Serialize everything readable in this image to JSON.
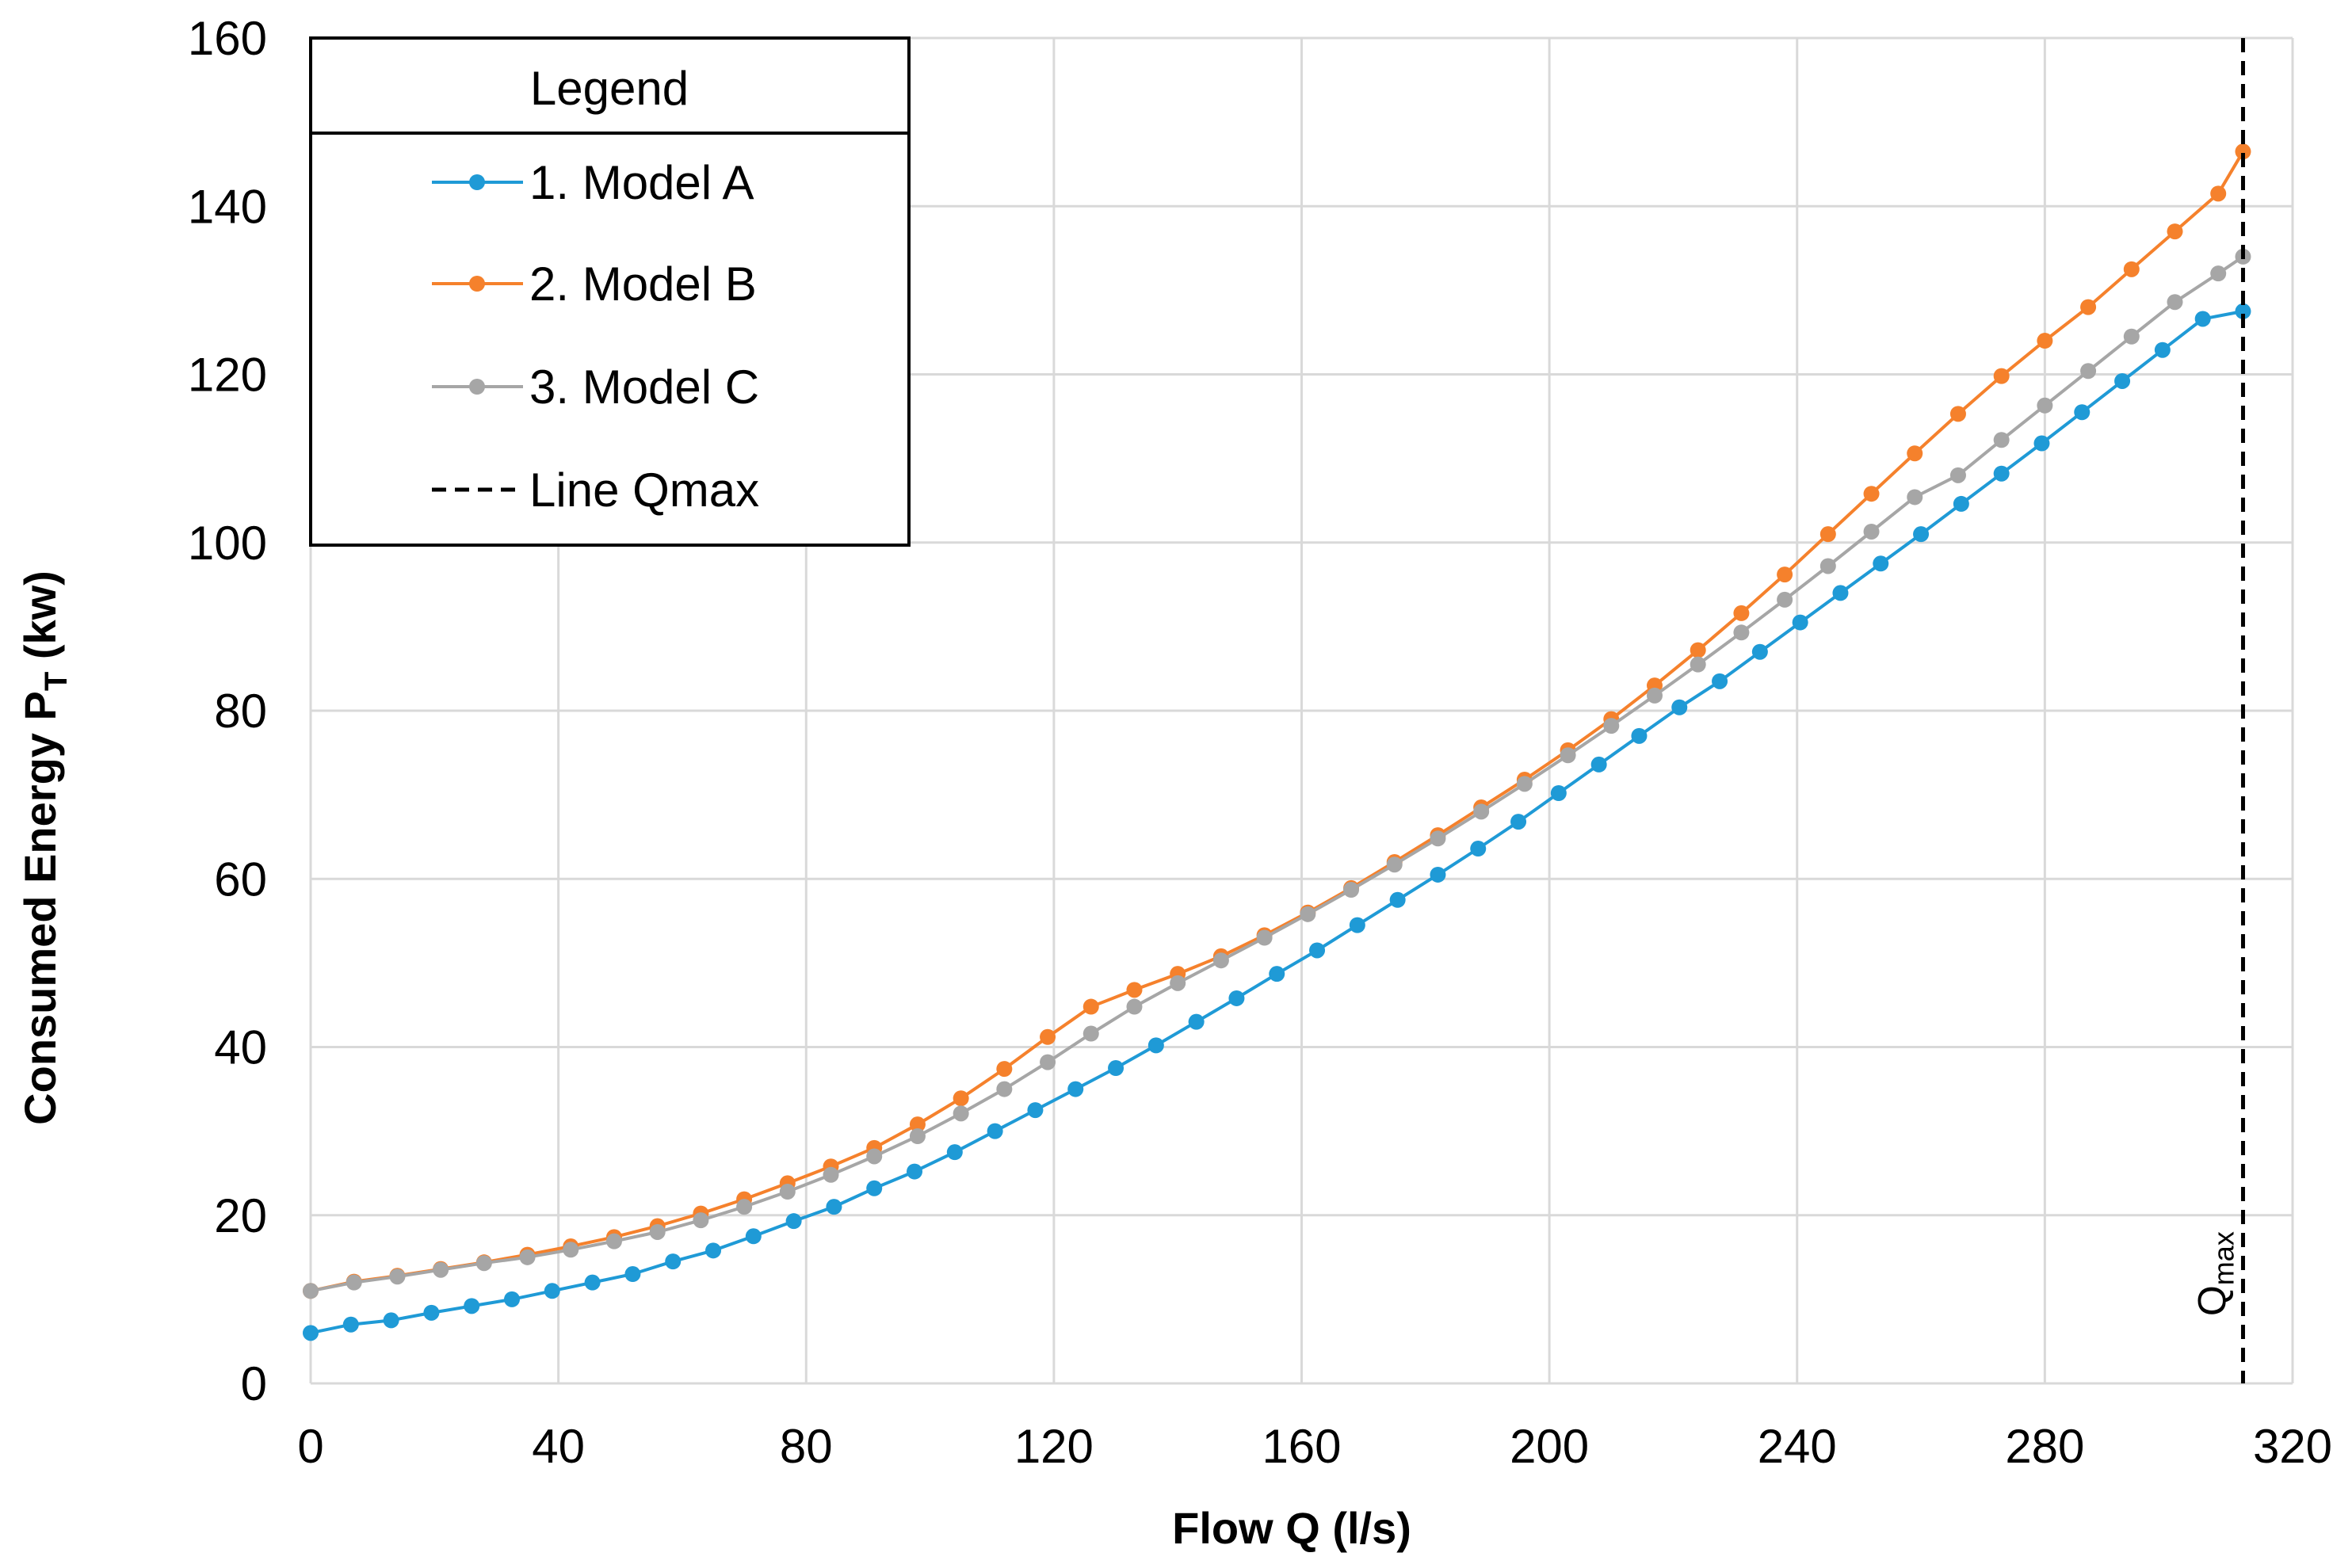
{
  "chart_data": {
    "type": "line",
    "title": "",
    "xlabel": "Flow Q (l/s)",
    "ylabel_main": "Consumed Energy P",
    "ylabel_sub": "T",
    "ylabel_unit": "(kw)",
    "xlim": [
      0,
      320
    ],
    "ylim": [
      0,
      160
    ],
    "xticks": [
      0,
      40,
      80,
      120,
      160,
      200,
      240,
      280,
      320
    ],
    "yticks": [
      0,
      20,
      40,
      60,
      80,
      100,
      120,
      140,
      160
    ],
    "grid": true,
    "legend": {
      "title": "Legend",
      "placement": "top-left",
      "entries": [
        "1. Model A",
        "2. Model B",
        "3. Model C",
        "Line Qmax"
      ]
    },
    "series": [
      {
        "name": "1. Model A",
        "color": "#1f9ad6",
        "points": [
          [
            0,
            6.0
          ],
          [
            6.5,
            7.0
          ],
          [
            13,
            7.5
          ],
          [
            19.5,
            8.4
          ],
          [
            26,
            9.2
          ],
          [
            32.5,
            10.0
          ],
          [
            39,
            11.0
          ],
          [
            45.5,
            12.0
          ],
          [
            52,
            13.0
          ],
          [
            58.5,
            14.5
          ],
          [
            65,
            15.8
          ],
          [
            71.5,
            17.5
          ],
          [
            78,
            19.3
          ],
          [
            84.5,
            21.0
          ],
          [
            91,
            23.2
          ],
          [
            97.5,
            25.2
          ],
          [
            104,
            27.5
          ],
          [
            110.5,
            30.0
          ],
          [
            117,
            32.5
          ],
          [
            123.5,
            35.0
          ],
          [
            130,
            37.5
          ],
          [
            136.5,
            40.2
          ],
          [
            143,
            43.0
          ],
          [
            149.5,
            45.8
          ],
          [
            156,
            48.7
          ],
          [
            162.5,
            51.5
          ],
          [
            169,
            54.5
          ],
          [
            175.5,
            57.5
          ],
          [
            182,
            60.5
          ],
          [
            188.5,
            63.6
          ],
          [
            195,
            66.8
          ],
          [
            201.5,
            70.2
          ],
          [
            208,
            73.6
          ],
          [
            214.5,
            77.0
          ],
          [
            221,
            80.4
          ],
          [
            227.5,
            83.5
          ],
          [
            234,
            87.0
          ],
          [
            240.5,
            90.5
          ],
          [
            247,
            94.0
          ],
          [
            253.5,
            97.5
          ],
          [
            260,
            101.0
          ],
          [
            266.5,
            104.6
          ],
          [
            273,
            108.2
          ],
          [
            279.5,
            111.8
          ],
          [
            286,
            115.5
          ],
          [
            292.5,
            119.2
          ],
          [
            299,
            122.9
          ],
          [
            305.5,
            126.6
          ],
          [
            312,
            127.5
          ]
        ]
      },
      {
        "name": "2. Model B",
        "color": "#f5812c",
        "points": [
          [
            0,
            11.0
          ],
          [
            7,
            12.1
          ],
          [
            14,
            12.8
          ],
          [
            21,
            13.6
          ],
          [
            28,
            14.4
          ],
          [
            35,
            15.3
          ],
          [
            42,
            16.3
          ],
          [
            49,
            17.4
          ],
          [
            56,
            18.7
          ],
          [
            63,
            20.2
          ],
          [
            70,
            21.9
          ],
          [
            77,
            23.8
          ],
          [
            84,
            25.8
          ],
          [
            91,
            28.0
          ],
          [
            98,
            30.8
          ],
          [
            105,
            33.9
          ],
          [
            112,
            37.4
          ],
          [
            119,
            41.2
          ],
          [
            126,
            44.8
          ],
          [
            133,
            46.8
          ],
          [
            140,
            48.7
          ],
          [
            147,
            50.8
          ],
          [
            154,
            53.3
          ],
          [
            161,
            56.0
          ],
          [
            168,
            58.9
          ],
          [
            175,
            62.0
          ],
          [
            182,
            65.2
          ],
          [
            189,
            68.5
          ],
          [
            196,
            71.8
          ],
          [
            203,
            75.3
          ],
          [
            210,
            79.0
          ],
          [
            217,
            83.0
          ],
          [
            224,
            87.2
          ],
          [
            231,
            91.6
          ],
          [
            238,
            96.2
          ],
          [
            245,
            101.0
          ],
          [
            252,
            105.8
          ],
          [
            259,
            110.6
          ],
          [
            266,
            115.3
          ],
          [
            273,
            119.8
          ],
          [
            280,
            124.0
          ],
          [
            287,
            128.0
          ],
          [
            294,
            132.5
          ],
          [
            301,
            137.0
          ],
          [
            308,
            141.5
          ],
          [
            312,
            146.5
          ]
        ]
      },
      {
        "name": "3. Model C",
        "color": "#a6a6a6",
        "points": [
          [
            0,
            11.0
          ],
          [
            7,
            12.0
          ],
          [
            14,
            12.7
          ],
          [
            21,
            13.5
          ],
          [
            28,
            14.3
          ],
          [
            35,
            15.0
          ],
          [
            42,
            15.9
          ],
          [
            49,
            16.9
          ],
          [
            56,
            18.0
          ],
          [
            63,
            19.4
          ],
          [
            70,
            21.0
          ],
          [
            77,
            22.8
          ],
          [
            84,
            24.8
          ],
          [
            91,
            27.0
          ],
          [
            98,
            29.4
          ],
          [
            105,
            32.1
          ],
          [
            112,
            35.0
          ],
          [
            119,
            38.2
          ],
          [
            126,
            41.6
          ],
          [
            133,
            44.8
          ],
          [
            140,
            47.6
          ],
          [
            147,
            50.3
          ],
          [
            154,
            53.0
          ],
          [
            161,
            55.8
          ],
          [
            168,
            58.7
          ],
          [
            175,
            61.7
          ],
          [
            182,
            64.8
          ],
          [
            189,
            68.0
          ],
          [
            196,
            71.3
          ],
          [
            203,
            74.7
          ],
          [
            210,
            78.2
          ],
          [
            217,
            81.8
          ],
          [
            224,
            85.5
          ],
          [
            231,
            89.3
          ],
          [
            238,
            93.2
          ],
          [
            245,
            97.2
          ],
          [
            252,
            101.3
          ],
          [
            259,
            105.4
          ],
          [
            266,
            108.0
          ],
          [
            273,
            112.2
          ],
          [
            280,
            116.3
          ],
          [
            287,
            120.4
          ],
          [
            294,
            124.5
          ],
          [
            301,
            128.6
          ],
          [
            308,
            132.0
          ],
          [
            312,
            134.0
          ]
        ]
      }
    ],
    "qmax_line": {
      "name": "Line Qmax",
      "x": 312,
      "color": "#000000",
      "label": "Q",
      "label_sub": "max"
    }
  }
}
